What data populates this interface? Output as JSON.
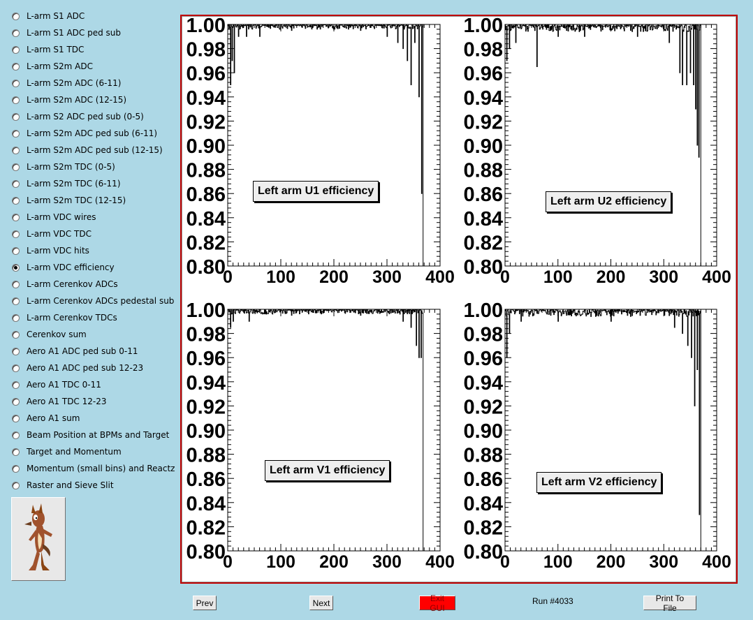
{
  "sidebar": {
    "items": [
      {
        "label": "L-arm S1 ADC",
        "checked": false
      },
      {
        "label": "L-arm S1 ADC ped sub",
        "checked": false
      },
      {
        "label": "L-arm S1 TDC",
        "checked": false
      },
      {
        "label": "L-arm S2m ADC",
        "checked": false
      },
      {
        "label": "L-arm S2m ADC (6-11)",
        "checked": false
      },
      {
        "label": "L-arm S2m ADC (12-15)",
        "checked": false
      },
      {
        "label": "L-arm S2 ADC ped sub (0-5)",
        "checked": false
      },
      {
        "label": "L-arm S2m ADC ped sub (6-11)",
        "checked": false
      },
      {
        "label": "L-arm S2m ADC ped sub (12-15)",
        "checked": false
      },
      {
        "label": "L-arm S2m TDC (0-5)",
        "checked": false
      },
      {
        "label": "L-arm S2m TDC (6-11)",
        "checked": false
      },
      {
        "label": "L-arm S2m TDC (12-15)",
        "checked": false
      },
      {
        "label": "L-arm VDC wires",
        "checked": false
      },
      {
        "label": "L-arm VDC TDC",
        "checked": false
      },
      {
        "label": "L-arm VDC hits",
        "checked": false
      },
      {
        "label": "L-arm VDC efficiency",
        "checked": true
      },
      {
        "label": "L-arm Cerenkov ADCs",
        "checked": false
      },
      {
        "label": "L-arm Cerenkov ADCs pedestal sub",
        "checked": false
      },
      {
        "label": "L-arm Cerenkov TDCs",
        "checked": false
      },
      {
        "label": "Cerenkov sum",
        "checked": false
      },
      {
        "label": "Aero A1 ADC ped sub 0-11",
        "checked": false
      },
      {
        "label": "Aero A1 ADC ped sub 12-23",
        "checked": false
      },
      {
        "label": "Aero A1 TDC 0-11",
        "checked": false
      },
      {
        "label": "Aero A1 TDC 12-23",
        "checked": false
      },
      {
        "label": "Aero A1 sum",
        "checked": false
      },
      {
        "label": "Beam Position at BPMs and Target",
        "checked": false
      },
      {
        "label": "Target and Momentum",
        "checked": false
      },
      {
        "label": "Momentum (small bins) and Reactz",
        "checked": false
      },
      {
        "label": "Raster and Sieve Slit",
        "checked": false
      }
    ],
    "logo_icon": "coyote-logo-icon"
  },
  "buttons": {
    "prev": "Prev",
    "next": "Next",
    "exit": "Exit GUI",
    "print": "Print To File"
  },
  "run_label": "Run #4033",
  "colors": {
    "background": "#add8e6",
    "frame_border": "#c00000",
    "exit_button": "#ff0000",
    "histogram_line": "#000000"
  },
  "chart_data": [
    {
      "type": "line",
      "title": "Left arm U1 efficiency",
      "xlim": [
        0,
        400
      ],
      "ylim": [
        0.8,
        1.0
      ],
      "xticks": [
        "0",
        "100",
        "200",
        "300",
        "400"
      ],
      "yticks": [
        "0.80",
        "0.82",
        "0.84",
        "0.86",
        "0.88",
        "0.90",
        "0.92",
        "0.94",
        "0.96",
        "0.98",
        "1.00"
      ],
      "grid": false,
      "dips": [
        [
          5,
          0.95
        ],
        [
          8,
          0.97
        ],
        [
          12,
          0.96
        ],
        [
          20,
          0.99
        ],
        [
          35,
          0.99
        ],
        [
          60,
          0.99
        ],
        [
          120,
          0.995
        ],
        [
          250,
          0.995
        ],
        [
          300,
          0.99
        ],
        [
          320,
          0.985
        ],
        [
          330,
          0.98
        ],
        [
          338,
          0.97
        ],
        [
          345,
          0.95
        ],
        [
          352,
          0.985
        ],
        [
          360,
          0.94
        ],
        [
          365,
          0.86
        ],
        [
          368,
          0.8
        ]
      ],
      "noise": 0.004,
      "last_bin": 368
    },
    {
      "type": "line",
      "title": "Left arm U2 efficiency",
      "xlim": [
        0,
        400
      ],
      "ylim": [
        0.8,
        1.0
      ],
      "xticks": [
        "0",
        "100",
        "200",
        "300",
        "400"
      ],
      "yticks": [
        "0.80",
        "0.82",
        "0.84",
        "0.86",
        "0.88",
        "0.90",
        "0.92",
        "0.94",
        "0.96",
        "0.98",
        "1.00"
      ],
      "grid": false,
      "dips": [
        [
          3,
          0.97
        ],
        [
          8,
          0.98
        ],
        [
          20,
          0.985
        ],
        [
          60,
          0.965
        ],
        [
          100,
          0.99
        ],
        [
          150,
          0.99
        ],
        [
          250,
          0.99
        ],
        [
          310,
          0.985
        ],
        [
          330,
          0.96
        ],
        [
          335,
          0.95
        ],
        [
          343,
          0.95
        ],
        [
          350,
          0.96
        ],
        [
          356,
          0.95
        ],
        [
          360,
          0.93
        ],
        [
          363,
          0.9
        ],
        [
          366,
          0.89
        ],
        [
          370,
          0.8
        ]
      ],
      "noise": 0.006,
      "last_bin": 370
    },
    {
      "type": "line",
      "title": "Left arm V1 efficiency",
      "xlim": [
        0,
        400
      ],
      "ylim": [
        0.8,
        1.0
      ],
      "xticks": [
        "0",
        "100",
        "200",
        "300",
        "400"
      ],
      "yticks": [
        "0.80",
        "0.82",
        "0.84",
        "0.86",
        "0.88",
        "0.90",
        "0.92",
        "0.94",
        "0.96",
        "0.98",
        "1.00"
      ],
      "grid": false,
      "dips": [
        [
          5,
          0.985
        ],
        [
          10,
          0.99
        ],
        [
          40,
          0.99
        ],
        [
          120,
          0.995
        ],
        [
          250,
          0.995
        ],
        [
          330,
          0.99
        ],
        [
          345,
          0.985
        ],
        [
          355,
          0.97
        ],
        [
          360,
          0.96
        ],
        [
          364,
          0.96
        ],
        [
          368,
          0.8
        ]
      ],
      "noise": 0.004,
      "last_bin": 368
    },
    {
      "type": "line",
      "title": "Left arm V2 efficiency",
      "xlim": [
        0,
        400
      ],
      "ylim": [
        0.8,
        1.0
      ],
      "xticks": [
        "0",
        "100",
        "200",
        "300",
        "400"
      ],
      "yticks": [
        "0.80",
        "0.82",
        "0.84",
        "0.86",
        "0.88",
        "0.90",
        "0.92",
        "0.94",
        "0.96",
        "0.98",
        "1.00"
      ],
      "grid": false,
      "dips": [
        [
          3,
          0.96
        ],
        [
          8,
          0.98
        ],
        [
          30,
          0.99
        ],
        [
          100,
          0.99
        ],
        [
          200,
          0.99
        ],
        [
          320,
          0.985
        ],
        [
          335,
          0.98
        ],
        [
          345,
          0.97
        ],
        [
          352,
          0.96
        ],
        [
          358,
          0.92
        ],
        [
          363,
          0.95
        ],
        [
          367,
          0.83
        ],
        [
          370,
          0.8
        ]
      ],
      "noise": 0.006,
      "last_bin": 370
    }
  ]
}
